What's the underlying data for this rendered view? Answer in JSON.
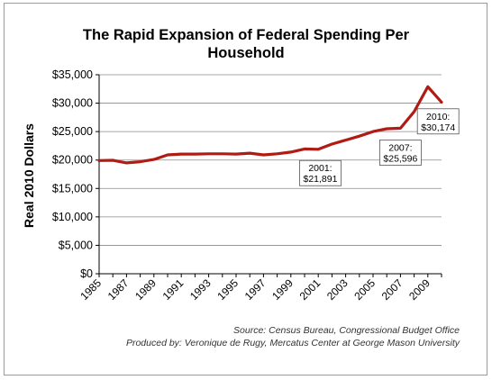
{
  "chart_data": {
    "type": "line",
    "title_line1": "The Rapid Expansion of Federal Spending Per",
    "title_line2": "Household",
    "ylabel": "Real 2010 Dollars",
    "xlabel": "",
    "ylim": [
      0,
      35000
    ],
    "y_ticks": [
      0,
      5000,
      10000,
      15000,
      20000,
      25000,
      30000,
      35000
    ],
    "y_tick_labels": [
      "$0",
      "$5,000",
      "$10,000",
      "$15,000",
      "$20,000",
      "$25,000",
      "$30,000",
      "$35,000"
    ],
    "x_tick_labels": [
      "1985",
      "1987",
      "1989",
      "1991",
      "1993",
      "1995",
      "1997",
      "1999",
      "2001",
      "2003",
      "2005",
      "2007",
      "2009"
    ],
    "grid": "horizontal",
    "line_color": "#b01c14",
    "series": [
      {
        "x": [
          1985,
          1986,
          1987,
          1988,
          1989,
          1990,
          1991,
          1992,
          1993,
          1994,
          1995,
          1996,
          1997,
          1998,
          1999,
          2000,
          2001,
          2002,
          2003,
          2004,
          2005,
          2006,
          2007,
          2008,
          2009,
          2010
        ],
        "values": [
          19900,
          19950,
          19500,
          19700,
          20100,
          20900,
          21050,
          21050,
          21100,
          21100,
          21050,
          21200,
          20900,
          21100,
          21400,
          21950,
          21891,
          22800,
          23500,
          24200,
          25000,
          25500,
          25596,
          28500,
          32900,
          30174
        ]
      }
    ],
    "annotations": [
      {
        "line1": "2001:",
        "line2": "$21,891"
      },
      {
        "line1": "2007:",
        "line2": "$25,596"
      },
      {
        "line1": "2010:",
        "line2": "$30,174"
      }
    ]
  },
  "footnotes": {
    "source": "Source: Census Bureau, Congressional Budget Office",
    "producer": "Produced by: Veronique de Rugy, Mercatus Center at George Mason University"
  }
}
